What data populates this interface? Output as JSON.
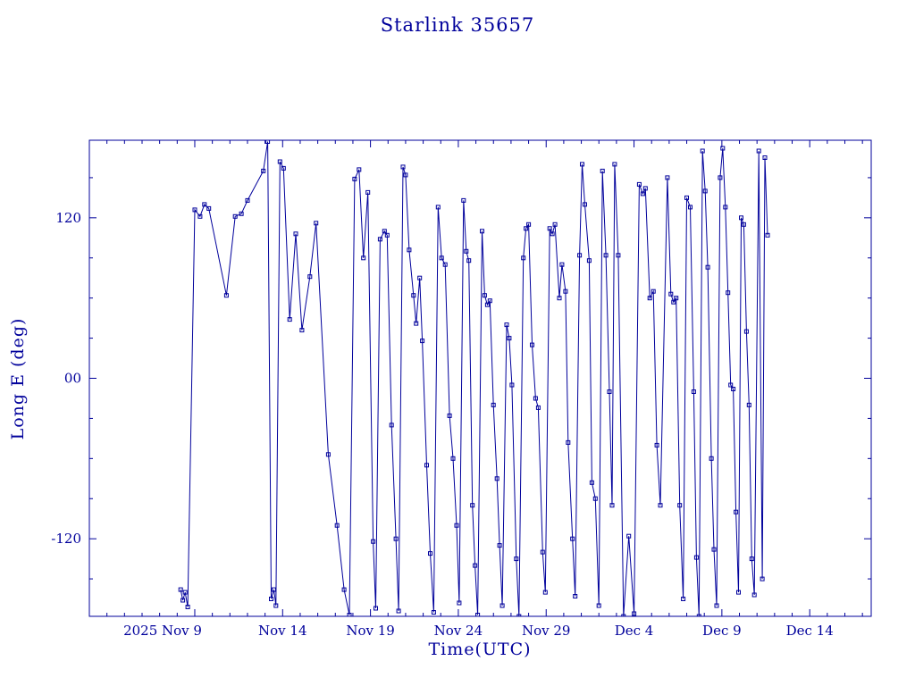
{
  "colors": {
    "plot": "#00009B",
    "background": "#FFFFFF"
  },
  "chart_data": {
    "type": "line",
    "title": "Starlink 35657",
    "xlabel": "Time(UTC)",
    "ylabel": "Long E (deg)",
    "legend": "none",
    "grid": false,
    "marker": "open-square",
    "x_unit": "days (Nov 1 2025 = 1, Dec 4 = 34)",
    "xlim": [
      3.0,
      47.5
    ],
    "ylim": [
      -178,
      178
    ],
    "x_minor_step": 1,
    "y_minor_step": 30,
    "x_major_ticks": [
      {
        "x": 9,
        "label": "2025 Nov 9"
      },
      {
        "x": 14,
        "label": "Nov 14"
      },
      {
        "x": 19,
        "label": "Nov 19"
      },
      {
        "x": 24,
        "label": "Nov 24"
      },
      {
        "x": 29,
        "label": "Nov 29"
      },
      {
        "x": 34,
        "label": "Dec 4"
      },
      {
        "x": 39,
        "label": "Dec 9"
      },
      {
        "x": 44,
        "label": "Dec 14"
      }
    ],
    "y_major_ticks": [
      {
        "y": 120,
        "label": "120"
      },
      {
        "y": 0,
        "label": "00"
      },
      {
        "y": -120,
        "label": "-120"
      }
    ],
    "points": [
      [
        8.2,
        -158
      ],
      [
        8.32,
        -166
      ],
      [
        8.45,
        -160
      ],
      [
        8.6,
        -171
      ],
      [
        9.0,
        126
      ],
      [
        9.3,
        121
      ],
      [
        9.55,
        130
      ],
      [
        9.8,
        127
      ],
      [
        10.8,
        62
      ],
      [
        11.3,
        121
      ],
      [
        11.65,
        123
      ],
      [
        12.0,
        133
      ],
      [
        12.9,
        155
      ],
      [
        13.15,
        177
      ],
      [
        13.35,
        -165
      ],
      [
        13.5,
        -158
      ],
      [
        13.62,
        -170
      ],
      [
        13.85,
        162
      ],
      [
        14.05,
        157
      ],
      [
        14.4,
        44
      ],
      [
        14.75,
        108
      ],
      [
        15.1,
        36
      ],
      [
        15.55,
        76
      ],
      [
        15.9,
        116
      ],
      [
        16.6,
        -57
      ],
      [
        17.1,
        -110
      ],
      [
        17.5,
        -158
      ],
      [
        17.8,
        -177
      ],
      [
        18.1,
        149
      ],
      [
        18.35,
        156
      ],
      [
        18.6,
        90
      ],
      [
        18.85,
        139
      ],
      [
        19.15,
        -122
      ],
      [
        19.3,
        -172
      ],
      [
        19.55,
        104
      ],
      [
        19.8,
        110
      ],
      [
        19.95,
        107
      ],
      [
        20.2,
        -35
      ],
      [
        20.45,
        -120
      ],
      [
        20.6,
        -174
      ],
      [
        20.85,
        158
      ],
      [
        21.0,
        152
      ],
      [
        21.2,
        96
      ],
      [
        21.45,
        62
      ],
      [
        21.6,
        41
      ],
      [
        21.8,
        75
      ],
      [
        21.95,
        28
      ],
      [
        22.2,
        -65
      ],
      [
        22.4,
        -131
      ],
      [
        22.6,
        -175
      ],
      [
        22.85,
        128
      ],
      [
        23.05,
        90
      ],
      [
        23.25,
        85
      ],
      [
        23.5,
        -28
      ],
      [
        23.7,
        -60
      ],
      [
        23.9,
        -110
      ],
      [
        24.05,
        -168
      ],
      [
        24.3,
        133
      ],
      [
        24.45,
        95
      ],
      [
        24.6,
        88
      ],
      [
        24.8,
        -95
      ],
      [
        24.95,
        -140
      ],
      [
        25.1,
        -177
      ],
      [
        25.35,
        110
      ],
      [
        25.5,
        62
      ],
      [
        25.65,
        55
      ],
      [
        25.8,
        58
      ],
      [
        26.0,
        -20
      ],
      [
        26.2,
        -75
      ],
      [
        26.35,
        -125
      ],
      [
        26.5,
        -170
      ],
      [
        26.75,
        40
      ],
      [
        26.9,
        30
      ],
      [
        27.05,
        -5
      ],
      [
        27.3,
        -135
      ],
      [
        27.45,
        -178
      ],
      [
        27.7,
        90
      ],
      [
        27.85,
        112
      ],
      [
        28.0,
        115
      ],
      [
        28.2,
        25
      ],
      [
        28.4,
        -15
      ],
      [
        28.55,
        -22
      ],
      [
        28.8,
        -130
      ],
      [
        28.95,
        -160
      ],
      [
        29.2,
        112
      ],
      [
        29.35,
        108
      ],
      [
        29.5,
        115
      ],
      [
        29.75,
        60
      ],
      [
        29.9,
        85
      ],
      [
        30.1,
        65
      ],
      [
        30.25,
        -48
      ],
      [
        30.5,
        -120
      ],
      [
        30.65,
        -163
      ],
      [
        30.9,
        92
      ],
      [
        31.05,
        160
      ],
      [
        31.2,
        130
      ],
      [
        31.45,
        88
      ],
      [
        31.6,
        -78
      ],
      [
        31.8,
        -90
      ],
      [
        32.0,
        -170
      ],
      [
        32.2,
        155
      ],
      [
        32.4,
        92
      ],
      [
        32.6,
        -10
      ],
      [
        32.75,
        -95
      ],
      [
        32.9,
        160
      ],
      [
        33.1,
        92
      ],
      [
        33.4,
        -178
      ],
      [
        33.7,
        -118
      ],
      [
        34.0,
        -176
      ],
      [
        34.3,
        145
      ],
      [
        34.5,
        138
      ],
      [
        34.65,
        142
      ],
      [
        34.9,
        60
      ],
      [
        35.1,
        65
      ],
      [
        35.3,
        -50
      ],
      [
        35.5,
        -95
      ],
      [
        35.9,
        150
      ],
      [
        36.1,
        63
      ],
      [
        36.25,
        57
      ],
      [
        36.4,
        60
      ],
      [
        36.6,
        -95
      ],
      [
        36.8,
        -165
      ],
      [
        37.0,
        135
      ],
      [
        37.2,
        128
      ],
      [
        37.4,
        -10
      ],
      [
        37.55,
        -134
      ],
      [
        37.7,
        -178
      ],
      [
        37.9,
        170
      ],
      [
        38.05,
        140
      ],
      [
        38.2,
        83
      ],
      [
        38.4,
        -60
      ],
      [
        38.55,
        -128
      ],
      [
        38.7,
        -170
      ],
      [
        38.9,
        150
      ],
      [
        39.05,
        172
      ],
      [
        39.2,
        128
      ],
      [
        39.35,
        64
      ],
      [
        39.5,
        -5
      ],
      [
        39.65,
        -8
      ],
      [
        39.8,
        -100
      ],
      [
        39.95,
        -160
      ],
      [
        40.1,
        120
      ],
      [
        40.25,
        115
      ],
      [
        40.4,
        35
      ],
      [
        40.55,
        -20
      ],
      [
        40.7,
        -135
      ],
      [
        40.85,
        -162
      ],
      [
        41.1,
        170
      ],
      [
        41.3,
        -150
      ],
      [
        41.45,
        165
      ],
      [
        41.6,
        107
      ]
    ]
  }
}
